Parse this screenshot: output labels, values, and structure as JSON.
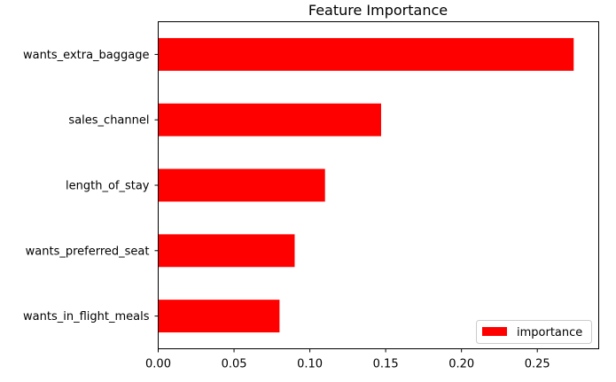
{
  "chart_data": {
    "type": "bar",
    "orientation": "horizontal",
    "title": "Feature Importance",
    "xlabel": "",
    "ylabel": "",
    "categories": [
      "wants_extra_baggage",
      "sales_channel",
      "length_of_stay",
      "wants_preferred_seat",
      "wants_in_flight_meals"
    ],
    "series": [
      {
        "name": "importance",
        "values": [
          0.274,
          0.147,
          0.11,
          0.09,
          0.08
        ],
        "color": "#ff0000"
      }
    ],
    "xlim": [
      0.0,
      0.2905
    ],
    "xticks": [
      0.0,
      0.05,
      0.1,
      0.15,
      0.2,
      0.25
    ],
    "xtick_labels": [
      "0.00",
      "0.05",
      "0.10",
      "0.15",
      "0.20",
      "0.25"
    ],
    "grid": false,
    "legend": {
      "position": "bottom-right",
      "entries": [
        "importance"
      ]
    }
  }
}
